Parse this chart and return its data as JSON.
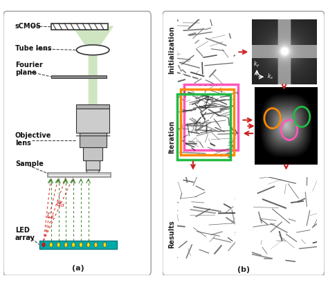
{
  "fig_width": 4.74,
  "fig_height": 4.15,
  "dpi": 100,
  "bg_color": "#ffffff",
  "green_beam_color": "#a8d090",
  "green_beam_alpha": 0.55,
  "led_board_color": "#00aaaa",
  "arrow_red": "#cc2222",
  "dashed_color": "#444444",
  "circle_colors_iter": [
    "#ff8800",
    "#ff55bb",
    "#22bb44"
  ],
  "stacked_frame_colors": [
    "#ff55bb",
    "#ff8800",
    "#22bb44"
  ],
  "caption_a": "(a)",
  "caption_b": "(b)",
  "label_scmos": "sCMOS",
  "label_tube": "Tube lens",
  "label_fourier": "Fourier\nplane",
  "label_obj": "Objective\nlens",
  "label_sample": "Sample",
  "label_led": "LED\narray",
  "label_init": "Initialization",
  "label_iter": "Iteration",
  "label_results": "Results"
}
